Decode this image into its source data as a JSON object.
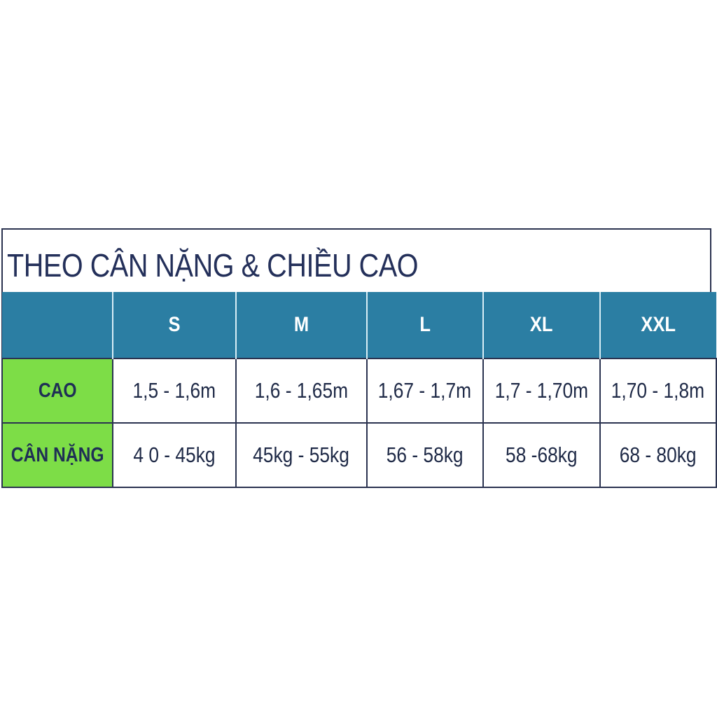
{
  "title": "THEO CÂN NẶNG & CHIỀU CAO",
  "colors": {
    "header_bg": "#2b7ea3",
    "label_bg": "#7ddd47",
    "text": "#1f2a47"
  },
  "table": {
    "headers": [
      "",
      "S",
      "M",
      "L",
      "XL",
      "XXL"
    ],
    "rows": [
      {
        "label": "CAO",
        "values": [
          "1,5 - 1,6m",
          "1,6 - 1,65m",
          "1,67 - 1,7m",
          "1,7 - 1,70m",
          "1,70 - 1,8m"
        ]
      },
      {
        "label": "CÂN NẶNG",
        "values": [
          "4 0 - 45kg",
          "45kg - 55kg",
          "56 - 58kg",
          "58 -68kg",
          "68 - 80kg"
        ]
      }
    ]
  }
}
